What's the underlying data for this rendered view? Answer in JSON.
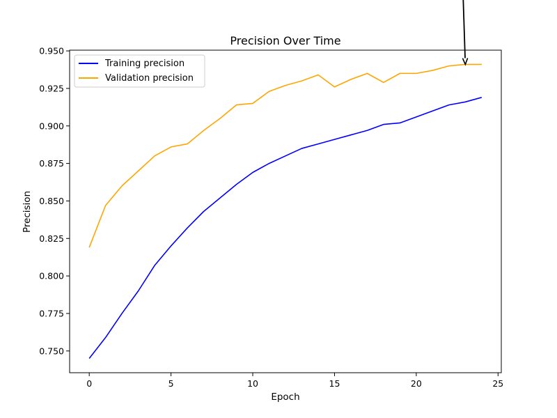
{
  "chart_data": {
    "type": "line",
    "title": "Precision Over Time",
    "xlabel": "Epoch",
    "ylabel": "Precision",
    "xlim": [
      -1.2,
      25.2
    ],
    "ylim": [
      0.7355,
      0.9505
    ],
    "xticks": [
      0,
      5,
      10,
      15,
      20,
      25
    ],
    "xtick_labels": [
      "0",
      "5",
      "10",
      "15",
      "20",
      "25"
    ],
    "yticks": [
      0.75,
      0.775,
      0.8,
      0.825,
      0.85,
      0.875,
      0.9,
      0.925,
      0.95
    ],
    "ytick_labels": [
      "0.750",
      "0.775",
      "0.800",
      "0.825",
      "0.850",
      "0.875",
      "0.900",
      "0.925",
      "0.950"
    ],
    "grid": false,
    "legend_position": "upper-left",
    "x": [
      0,
      1,
      2,
      3,
      4,
      5,
      6,
      7,
      8,
      9,
      10,
      11,
      12,
      13,
      14,
      15,
      16,
      17,
      18,
      19,
      20,
      21,
      22,
      23,
      24
    ],
    "series": [
      {
        "name": "Training precision",
        "color": "#0000ff",
        "values": [
          0.745,
          0.759,
          0.775,
          0.79,
          0.807,
          0.82,
          0.832,
          0.843,
          0.852,
          0.861,
          0.869,
          0.875,
          0.88,
          0.885,
          0.888,
          0.891,
          0.894,
          0.897,
          0.901,
          0.902,
          0.906,
          0.91,
          0.914,
          0.916,
          0.919
        ]
      },
      {
        "name": "Validation precision",
        "color": "#ffa500",
        "values": [
          0.819,
          0.847,
          0.86,
          0.87,
          0.88,
          0.886,
          0.888,
          0.897,
          0.905,
          0.914,
          0.915,
          0.923,
          0.927,
          0.93,
          0.934,
          0.926,
          0.931,
          0.935,
          0.929,
          0.935,
          0.935,
          0.937,
          0.94,
          0.941,
          0.941
        ]
      }
    ],
    "annotation": {
      "type": "arrow",
      "target_x": 23,
      "target_y": 0.941,
      "color": "#000000"
    }
  }
}
